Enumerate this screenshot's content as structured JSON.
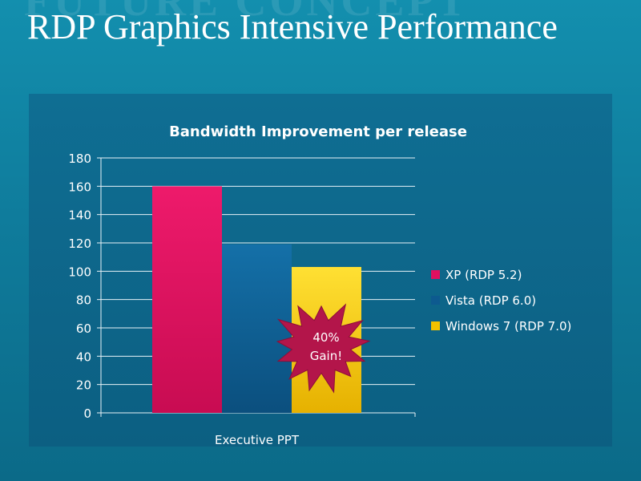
{
  "slide": {
    "title": "RDP Graphics Intensive Performance",
    "watermark": "FUTURE CONCEPT"
  },
  "colors": {
    "background": "#138fae",
    "panel": "#0f6e93",
    "text": "#ffffff",
    "burst": "#b3154a"
  },
  "chart_data": {
    "type": "bar",
    "title": "Bandwidth Improvement per release",
    "xlabel": "",
    "ylabel": "",
    "categories": [
      "Executive PPT"
    ],
    "series": [
      {
        "name": "XP (RDP 5.2)",
        "values": [
          160
        ],
        "color": "#e0105f"
      },
      {
        "name": "Vista (RDP 6.0)",
        "values": [
          119
        ],
        "color": "#0d5a8f"
      },
      {
        "name": "Windows 7 (RDP 7.0)",
        "values": [
          103
        ],
        "color": "#f2c200"
      }
    ],
    "ylim": [
      0,
      180
    ],
    "yticks": [
      0,
      20,
      40,
      60,
      80,
      100,
      120,
      140,
      160,
      180
    ],
    "grid": true,
    "legend": "right",
    "annotations": [
      {
        "text_line1": "40%",
        "text_line2": "Gain!",
        "shape": "starburst"
      }
    ]
  }
}
